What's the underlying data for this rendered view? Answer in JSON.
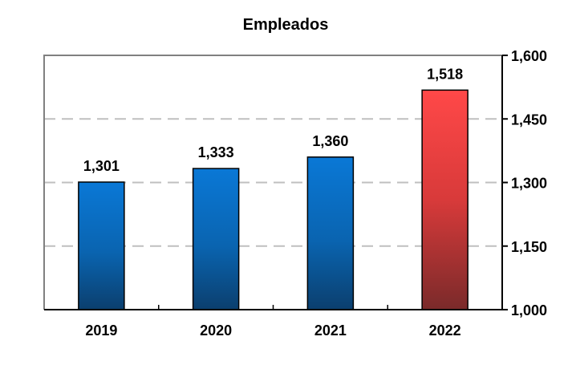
{
  "chart_data": {
    "type": "bar",
    "title": "Empleados",
    "categories": [
      "2019",
      "2020",
      "2021",
      "2022"
    ],
    "values": [
      1301,
      1333,
      1360,
      1518
    ],
    "data_labels": [
      "1,301",
      "1,333",
      "1,360",
      "1,518"
    ],
    "ylim": [
      1000,
      1600
    ],
    "y_ticks": [
      1000,
      1150,
      1300,
      1450,
      1600
    ],
    "y_tick_labels": [
      "1,000",
      "1,150",
      "1,300",
      "1,450",
      "1,600"
    ],
    "y_axis_position": "right",
    "grid": "horizontal dashed",
    "legend": "none",
    "colors": {
      "default_top": "#0a78d6",
      "default_bottom": "#0b3f6e",
      "highlight_top": "#ff4848",
      "highlight_bottom": "#7a2a2a",
      "grid": "#bfbfbf",
      "axis": "#000000"
    },
    "highlight_index": 3
  }
}
